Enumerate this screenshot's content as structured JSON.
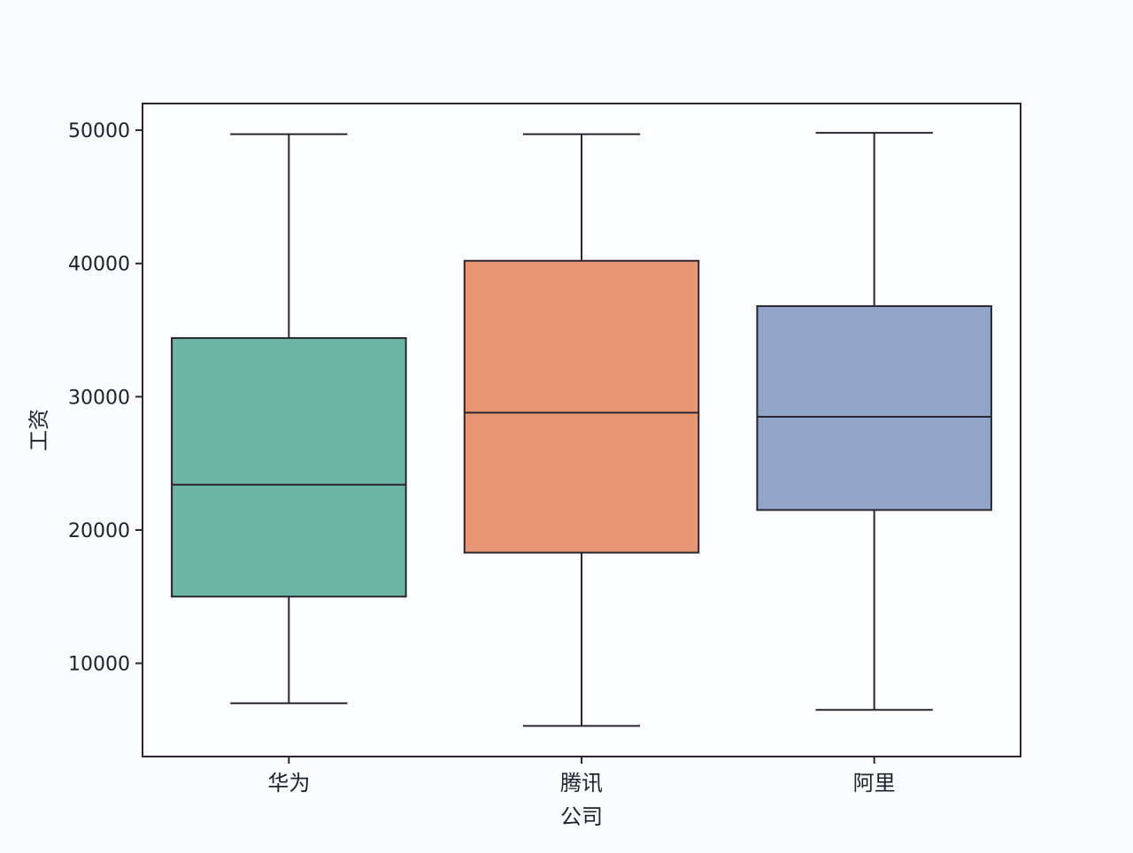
{
  "chart_data": {
    "type": "box",
    "title": "",
    "xlabel": "公司",
    "ylabel": "工资",
    "ylim": [
      3000,
      52000
    ],
    "yticks": [
      10000,
      20000,
      30000,
      40000,
      50000
    ],
    "grid": false,
    "categories": [
      "华为",
      "腾讯",
      "阿里"
    ],
    "boxes": [
      {
        "category": "华为",
        "whisker_low": 7000,
        "q1": 15000,
        "median": 23400,
        "q3": 34400,
        "whisker_high": 49700,
        "color": "#6db5a5"
      },
      {
        "category": "腾讯",
        "whisker_low": 5300,
        "q1": 18300,
        "median": 28800,
        "q3": 40200,
        "whisker_high": 49700,
        "color": "#e89774"
      },
      {
        "category": "阿里",
        "whisker_low": 6500,
        "q1": 21500,
        "median": 28500,
        "q3": 36800,
        "whisker_high": 49800,
        "color": "#93a4c9"
      }
    ],
    "line_color": "#2b2433"
  }
}
